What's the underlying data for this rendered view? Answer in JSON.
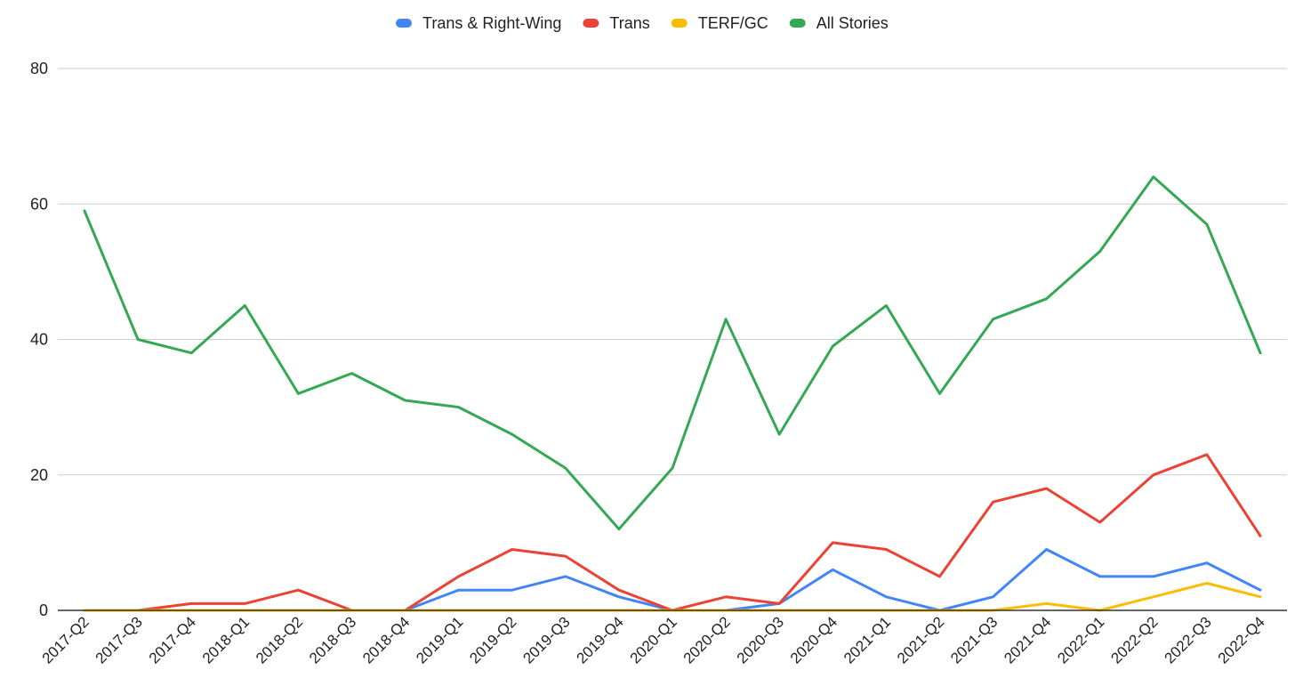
{
  "chart_data": {
    "type": "line",
    "title": "",
    "xlabel": "",
    "ylabel": "",
    "ylim": [
      0,
      80
    ],
    "yticks": [
      0,
      20,
      40,
      60,
      80
    ],
    "grid": true,
    "legend_position": "top",
    "categories": [
      "2017-Q2",
      "2017-Q3",
      "2017-Q4",
      "2018-Q1",
      "2018-Q2",
      "2018-Q3",
      "2018-Q4",
      "2019-Q1",
      "2019-Q2",
      "2019-Q3",
      "2019-Q4",
      "2020-Q1",
      "2020-Q2",
      "2020-Q3",
      "2020-Q4",
      "2021-Q1",
      "2021-Q2",
      "2021-Q3",
      "2021-Q4",
      "2022-Q1",
      "2022-Q2",
      "2022-Q3",
      "2022-Q4"
    ],
    "series": [
      {
        "name": "Trans & Right-Wing",
        "color": "#4285F4",
        "values": [
          0,
          0,
          0,
          0,
          0,
          0,
          0,
          3,
          3,
          5,
          2,
          0,
          0,
          1,
          6,
          2,
          0,
          2,
          9,
          5,
          5,
          7,
          3
        ]
      },
      {
        "name": "Trans",
        "color": "#EA4335",
        "values": [
          0,
          0,
          1,
          1,
          3,
          0,
          0,
          5,
          9,
          8,
          3,
          0,
          2,
          1,
          10,
          9,
          5,
          16,
          18,
          13,
          20,
          23,
          11
        ]
      },
      {
        "name": "TERF/GC",
        "color": "#FBBC04",
        "values": [
          0,
          0,
          0,
          0,
          0,
          0,
          0,
          0,
          0,
          0,
          0,
          0,
          0,
          0,
          0,
          0,
          0,
          0,
          1,
          0,
          2,
          4,
          2
        ]
      },
      {
        "name": "All Stories",
        "color": "#34A853",
        "values": [
          59,
          40,
          38,
          45,
          32,
          35,
          31,
          30,
          26,
          21,
          12,
          21,
          43,
          26,
          39,
          45,
          32,
          43,
          46,
          53,
          64,
          57,
          38
        ]
      }
    ]
  }
}
